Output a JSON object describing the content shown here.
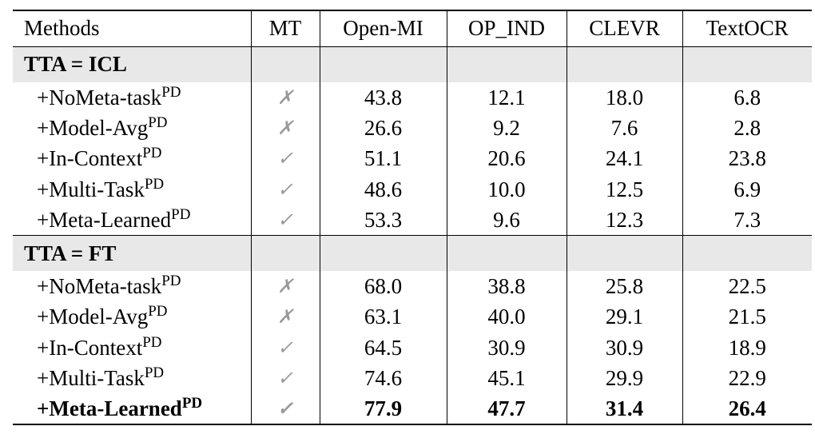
{
  "table": {
    "header": [
      "Methods",
      "MT",
      "Open-MI",
      "OP_IND",
      "CLEVR",
      "TextOCR"
    ],
    "sections": [
      {
        "title": "TTA = ICL",
        "rows": [
          {
            "method": "+NoMeta-task",
            "sup": "PD",
            "mt": "✗",
            "values": [
              "43.8",
              "12.1",
              "18.0",
              "6.8"
            ]
          },
          {
            "method": "+Model-Avg",
            "sup": "PD",
            "mt": "✗",
            "values": [
              "26.6",
              "9.2",
              "7.6",
              "2.8"
            ]
          },
          {
            "method": "+In-Context",
            "sup": "PD",
            "mt": "✓",
            "values": [
              "51.1",
              "20.6",
              "24.1",
              "23.8"
            ]
          },
          {
            "method": "+Multi-Task",
            "sup": "PD",
            "mt": "✓",
            "values": [
              "48.6",
              "10.0",
              "12.5",
              "6.9"
            ]
          },
          {
            "method": "+Meta-Learned",
            "sup": "PD",
            "mt": "✓",
            "values": [
              "53.3",
              "9.6",
              "12.3",
              "7.3"
            ]
          }
        ]
      },
      {
        "title": "TTA = FT",
        "rows": [
          {
            "method": "+NoMeta-task",
            "sup": "PD",
            "mt": "✗",
            "values": [
              "68.0",
              "38.8",
              "25.8",
              "22.5"
            ]
          },
          {
            "method": "+Model-Avg",
            "sup": "PD",
            "mt": "✗",
            "values": [
              "63.1",
              "40.0",
              "29.1",
              "21.5"
            ]
          },
          {
            "method": "+In-Context",
            "sup": "PD",
            "mt": "✓",
            "values": [
              "64.5",
              "30.9",
              "30.9",
              "18.9"
            ]
          },
          {
            "method": "+Multi-Task",
            "sup": "PD",
            "mt": "✓",
            "values": [
              "74.6",
              "45.1",
              "29.9",
              "22.9"
            ]
          },
          {
            "method": "+Meta-Learned",
            "sup": "PD",
            "mt": "✓",
            "values": [
              "77.9",
              "47.7",
              "31.4",
              "26.4"
            ],
            "bold": true
          }
        ]
      }
    ]
  }
}
